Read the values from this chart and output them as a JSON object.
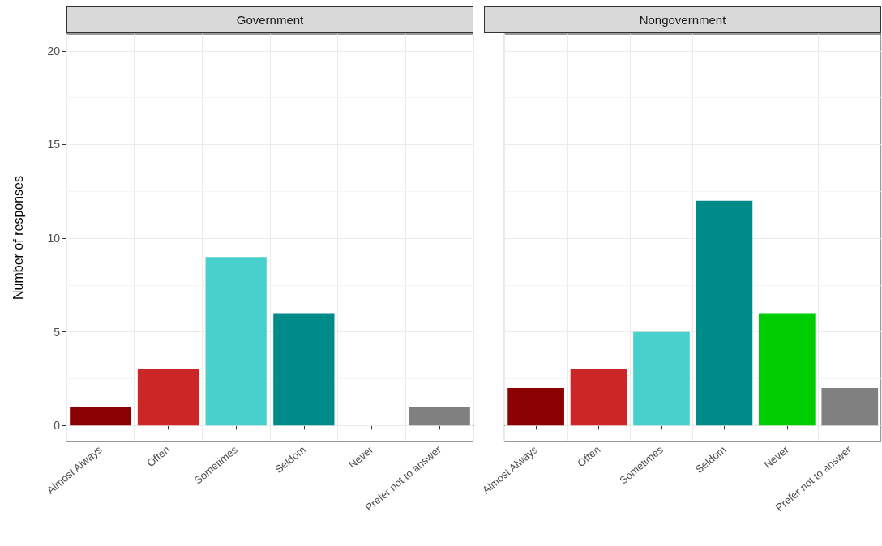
{
  "chart_data": [
    {
      "type": "bar",
      "title": "Government",
      "ylabel": "Number of responses",
      "categories": [
        "Almost Always",
        "Often",
        "Sometimes",
        "Seldom",
        "Never",
        "Prefer not to answer"
      ],
      "values": [
        1,
        3,
        9,
        6,
        0,
        1
      ],
      "colors": [
        "#8b0000",
        "#cd2626",
        "#48d1cc",
        "#008b8b",
        "#00cd00",
        "#808080"
      ],
      "ylim": [
        -0.85,
        20.9
      ],
      "yticks": [
        0,
        5,
        10,
        15,
        20
      ],
      "grid": true
    },
    {
      "type": "bar",
      "title": "Nongovernment",
      "categories": [
        "Almost Always",
        "Often",
        "Sometimes",
        "Seldom",
        "Never",
        "Prefer not to answer"
      ],
      "values": [
        2,
        3,
        5,
        12,
        6,
        2
      ],
      "colors": [
        "#8b0000",
        "#cd2626",
        "#48d1cc",
        "#008b8b",
        "#00cd00",
        "#808080"
      ],
      "ylim": [
        -0.85,
        20.9
      ],
      "yticks": [
        0,
        5,
        10,
        15,
        20
      ],
      "grid": true,
      "tick_labels": "x"
    }
  ]
}
